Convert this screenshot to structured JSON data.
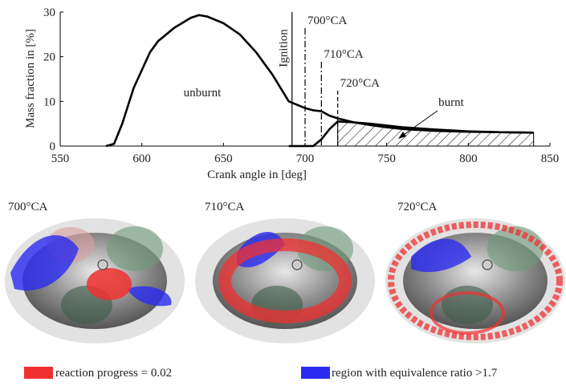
{
  "chart_data": {
    "type": "line",
    "xlabel": "Crank angle in [deg]",
    "ylabel": "Mass fraction in [%]",
    "x": [
      578,
      583,
      588,
      595,
      600,
      605,
      610,
      620,
      630,
      635,
      640,
      650,
      660,
      670,
      680,
      690,
      700,
      705,
      710,
      715,
      720,
      730,
      740,
      750,
      760,
      780,
      800,
      820,
      840
    ],
    "series": [
      {
        "name": "unburnt",
        "color": "#000000",
        "values": [
          0,
          0.5,
          5,
          13,
          17,
          21,
          23.5,
          26.5,
          28.7,
          29.3,
          29,
          27.5,
          25,
          21,
          16,
          10,
          8.5,
          8,
          7.8,
          6.8,
          6.2,
          5.3,
          4.7,
          4.2,
          3.8,
          3.4,
          3.2,
          3.1,
          3.0
        ]
      },
      {
        "name": "burnt",
        "color": "#000000",
        "values": [
          null,
          null,
          null,
          null,
          null,
          null,
          null,
          null,
          null,
          null,
          null,
          null,
          null,
          null,
          null,
          0,
          0,
          0,
          1.5,
          3.8,
          5.5,
          5.3,
          5,
          4.6,
          4.2,
          3.7,
          3.3,
          3.1,
          3.0
        ]
      }
    ],
    "xlim": [
      550,
      850
    ],
    "xticks": [
      550,
      600,
      650,
      700,
      750,
      800,
      850
    ],
    "ylim": [
      0,
      30
    ],
    "yticks": [
      0,
      10,
      20,
      30
    ],
    "markers": [
      {
        "x": 692,
        "label": "Ignition",
        "style": "solid"
      },
      {
        "x": 700,
        "label": "700°CA",
        "style": "dashdot"
      },
      {
        "x": 710,
        "label": "710°CA",
        "style": "dashdot"
      },
      {
        "x": 720,
        "label": "720°CA",
        "style": "dashed"
      }
    ]
  },
  "panels": [
    {
      "label": "700°CA"
    },
    {
      "label": "710°CA"
    },
    {
      "label": "720°CA"
    }
  ],
  "legend": [
    {
      "label": "reaction progress = 0.02",
      "color": "#f03030"
    },
    {
      "label": "region with equivalence ratio >1.7",
      "color": "#2a2af0"
    }
  ]
}
